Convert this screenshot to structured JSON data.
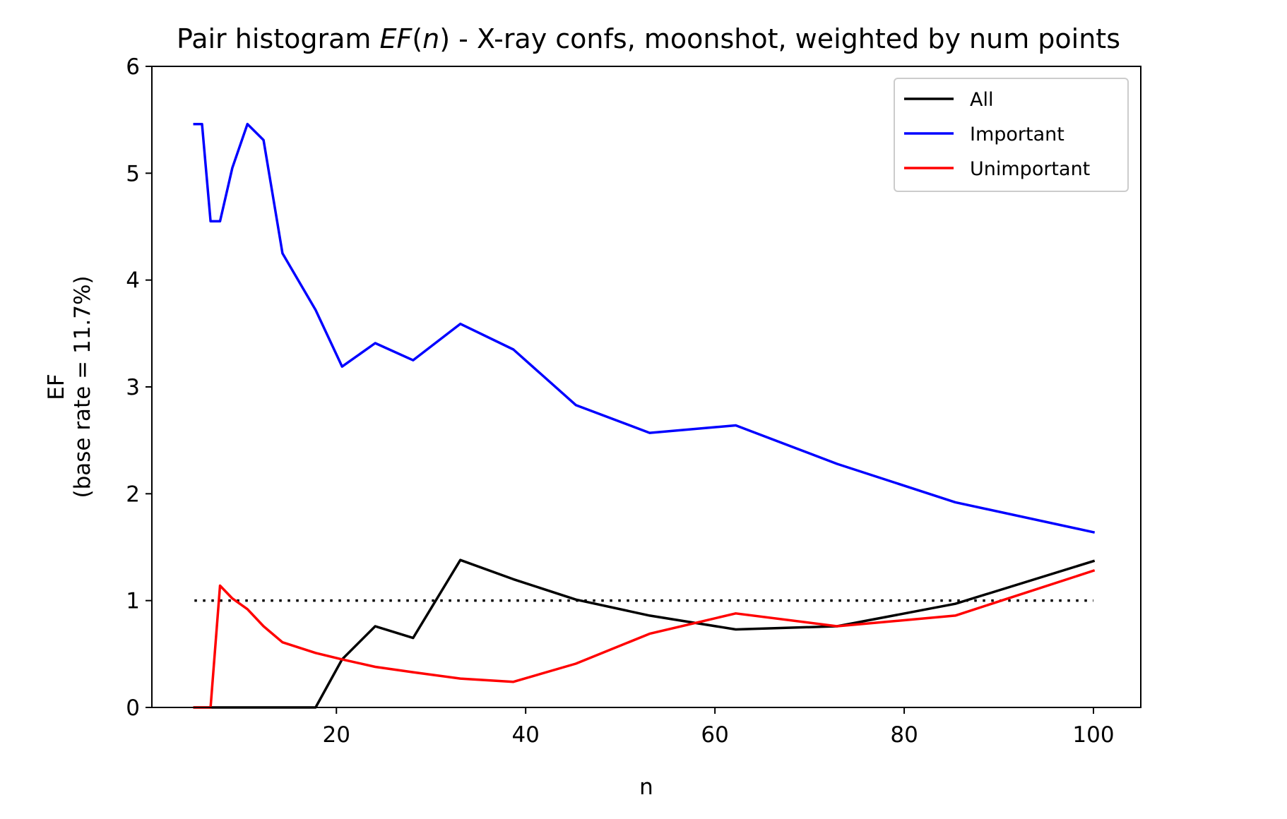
{
  "chart_data": {
    "type": "line",
    "title_parts": {
      "prefix": "Pair histogram ",
      "func": "EF",
      "open_paren": "(",
      "var": "n",
      "suffix": ") - X-ray confs, moonshot, weighted by num points"
    },
    "xlabel": "n",
    "ylabel": "EF",
    "ylabel_sub": "(base rate = 11.7%)",
    "xlim": [
      0.5,
      105
    ],
    "ylim": [
      0,
      6
    ],
    "xticks": [
      20,
      40,
      60,
      80,
      100
    ],
    "yticks": [
      0,
      1,
      2,
      3,
      4,
      5,
      6
    ],
    "grid": false,
    "legend_position": "top-right",
    "reference_line": {
      "y": 1,
      "x_range": [
        5,
        100
      ],
      "style": "dotted",
      "color": "#000000"
    },
    "series": [
      {
        "name": "All",
        "color": "#000000",
        "x": [
          5,
          5.8,
          6.7,
          7.7,
          9,
          10.6,
          12.3,
          14.3,
          17.8,
          20.6,
          24.1,
          28.1,
          33.1,
          38.7,
          45.3,
          53.1,
          62.2,
          72.9,
          85.4,
          100
        ],
        "y": [
          0,
          0,
          0,
          0,
          0,
          0,
          0,
          0,
          0,
          0.45,
          0.76,
          0.65,
          1.38,
          1.2,
          1.01,
          0.86,
          0.73,
          0.76,
          0.97,
          1.37
        ]
      },
      {
        "name": "Important",
        "color": "#0000ff",
        "x": [
          5,
          5.8,
          6.7,
          7.7,
          9,
          10.6,
          12.3,
          14.3,
          17.8,
          20.6,
          24.1,
          28.1,
          33.1,
          38.7,
          45.3,
          53.1,
          62.2,
          72.9,
          85.4,
          100
        ],
        "y": [
          5.46,
          5.46,
          4.55,
          4.55,
          5.05,
          5.46,
          5.31,
          4.25,
          3.72,
          3.19,
          3.41,
          3.25,
          3.59,
          3.35,
          2.83,
          2.57,
          2.64,
          2.28,
          1.92,
          1.64
        ]
      },
      {
        "name": "Unimportant",
        "color": "#ff0000",
        "x": [
          5,
          5.8,
          6.7,
          7.7,
          9,
          10.6,
          12.3,
          14.3,
          17.8,
          20.6,
          24.1,
          28.1,
          33.1,
          38.7,
          45.3,
          53.1,
          62.2,
          72.9,
          85.4,
          100
        ],
        "y": [
          0,
          0,
          0,
          1.14,
          1.02,
          0.92,
          0.76,
          0.61,
          0.51,
          0.45,
          0.38,
          0.33,
          0.27,
          0.24,
          0.41,
          0.69,
          0.88,
          0.76,
          0.86,
          1.28
        ]
      }
    ]
  }
}
